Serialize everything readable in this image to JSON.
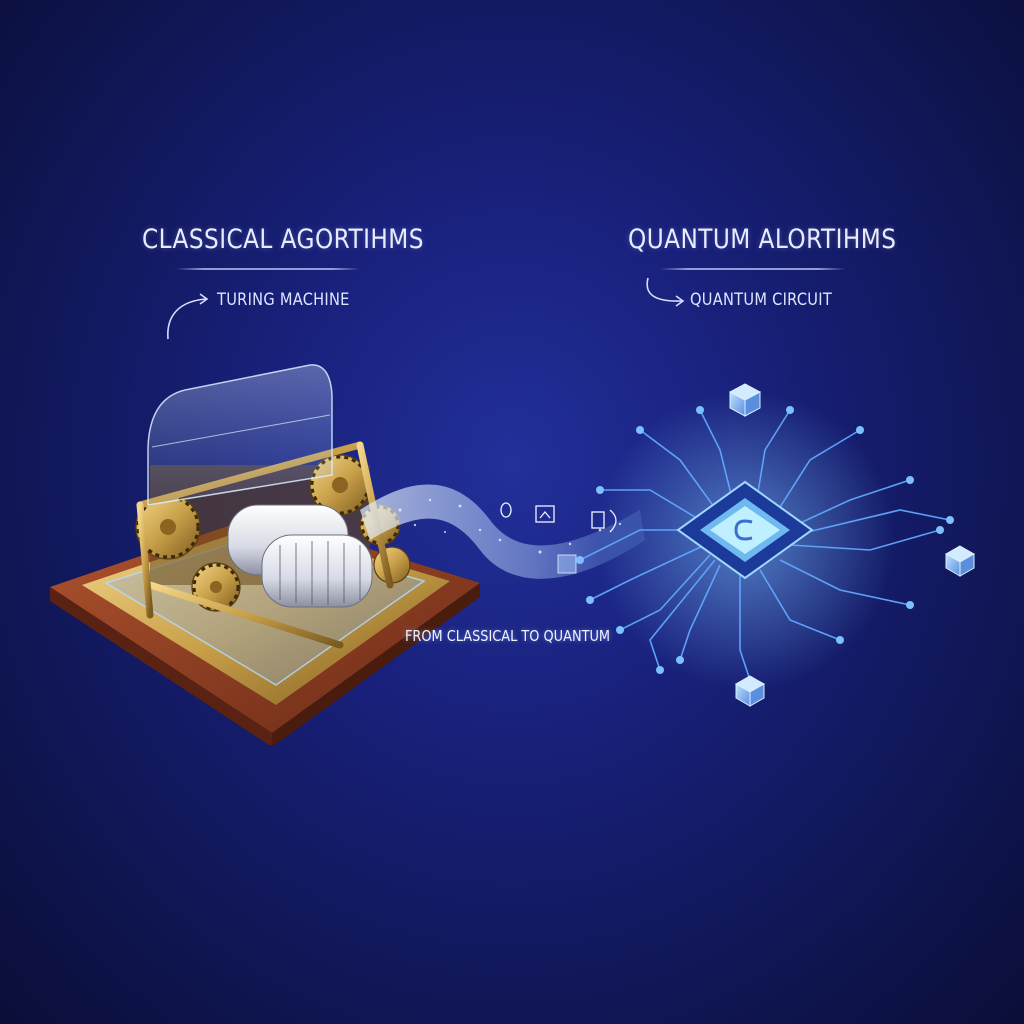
{
  "left_panel": {
    "title": "CLASSICAL AGORTIHMS",
    "subtitle": "TURING MACHINE"
  },
  "right_panel": {
    "title": "QUANTUM ALORTIHMS",
    "subtitle": "QUANTUM CIRCUIT"
  },
  "transition_caption": "FROM CLASSICAL TO QUANTUM",
  "colors": {
    "background": "#18207a",
    "brass": "#c9a04a",
    "wood": "#8a3a22",
    "glow_blue": "#5fa8ff",
    "chip_core": "#9fe3ff"
  },
  "icons": [
    "turing-machine-illustration",
    "quantum-chip-illustration",
    "data-stream",
    "arrow-curve-icon"
  ]
}
